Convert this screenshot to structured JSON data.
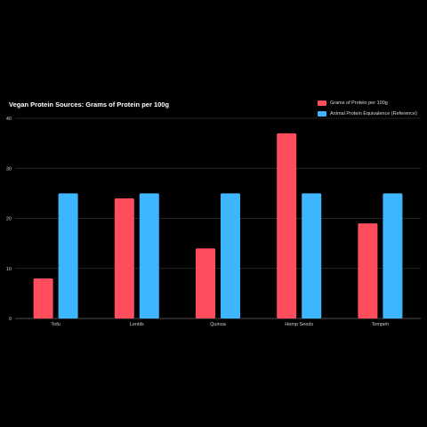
{
  "chart_data": {
    "type": "bar",
    "title": "Vegan Protein Sources: Grams of Protein per 100g",
    "xlabel": "",
    "ylabel": "",
    "categories": [
      "Tofu",
      "Lentils",
      "Quinoa",
      "Hemp Seeds",
      "Tempeh"
    ],
    "series": [
      {
        "name": "Grams of Protein per 100g",
        "values": [
          8,
          24,
          14,
          37,
          19
        ],
        "color": "#ff4d5e"
      },
      {
        "name": "Animal Protein Equivalence (Reference)",
        "values": [
          25,
          25,
          25,
          25,
          25
        ],
        "color": "#3db5ff"
      }
    ],
    "ylim": [
      0,
      40
    ],
    "yticks": [
      0,
      10,
      20,
      30,
      40
    ],
    "grid": true,
    "legend_position": "top-right"
  }
}
